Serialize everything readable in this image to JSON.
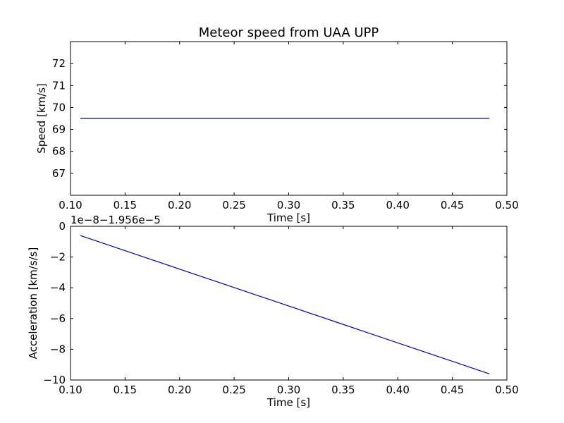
{
  "chart_data": [
    {
      "type": "line",
      "title": "Meteor speed from  UAA UPP",
      "xlabel": "Time [s]",
      "ylabel": "Speed [km/s]",
      "xlim": [
        0.1,
        0.5
      ],
      "ylim": [
        66.0,
        73.0
      ],
      "xticks": [
        0.1,
        0.15,
        0.2,
        0.25,
        0.3,
        0.35,
        0.4,
        0.45,
        0.5
      ],
      "xtick_labels": [
        "0.10",
        "0.15",
        "0.20",
        "0.25",
        "0.30",
        "0.35",
        "0.40",
        "0.45",
        "0.50"
      ],
      "yticks": [
        67,
        68,
        69,
        70,
        71,
        72
      ],
      "ytick_labels": [
        "67",
        "68",
        "69",
        "70",
        "71",
        "72"
      ],
      "grid": false,
      "series": [
        {
          "color": "#0000cc",
          "x": [
            0.109,
            0.484
          ],
          "y": [
            69.5,
            69.5
          ]
        }
      ]
    },
    {
      "type": "line",
      "title": "",
      "xlabel": "Time [s]",
      "ylabel": "Acceleration [km/s/s]",
      "offset_label": "1e−8−1.956e−5",
      "xlim": [
        0.1,
        0.5
      ],
      "ylim": [
        -10,
        0
      ],
      "xticks": [
        0.1,
        0.15,
        0.2,
        0.25,
        0.3,
        0.35,
        0.4,
        0.45,
        0.5
      ],
      "xtick_labels": [
        "0.10",
        "0.15",
        "0.20",
        "0.25",
        "0.30",
        "0.35",
        "0.40",
        "0.45",
        "0.50"
      ],
      "yticks": [
        0,
        -2,
        -4,
        -6,
        -8,
        -10
      ],
      "ytick_labels": [
        "0",
        "−2",
        "−4",
        "−6",
        "−8",
        "−10"
      ],
      "grid": false,
      "series": [
        {
          "color": "#0000cc",
          "x": [
            0.109,
            0.484
          ],
          "y": [
            -0.6,
            -9.6
          ]
        }
      ]
    }
  ]
}
